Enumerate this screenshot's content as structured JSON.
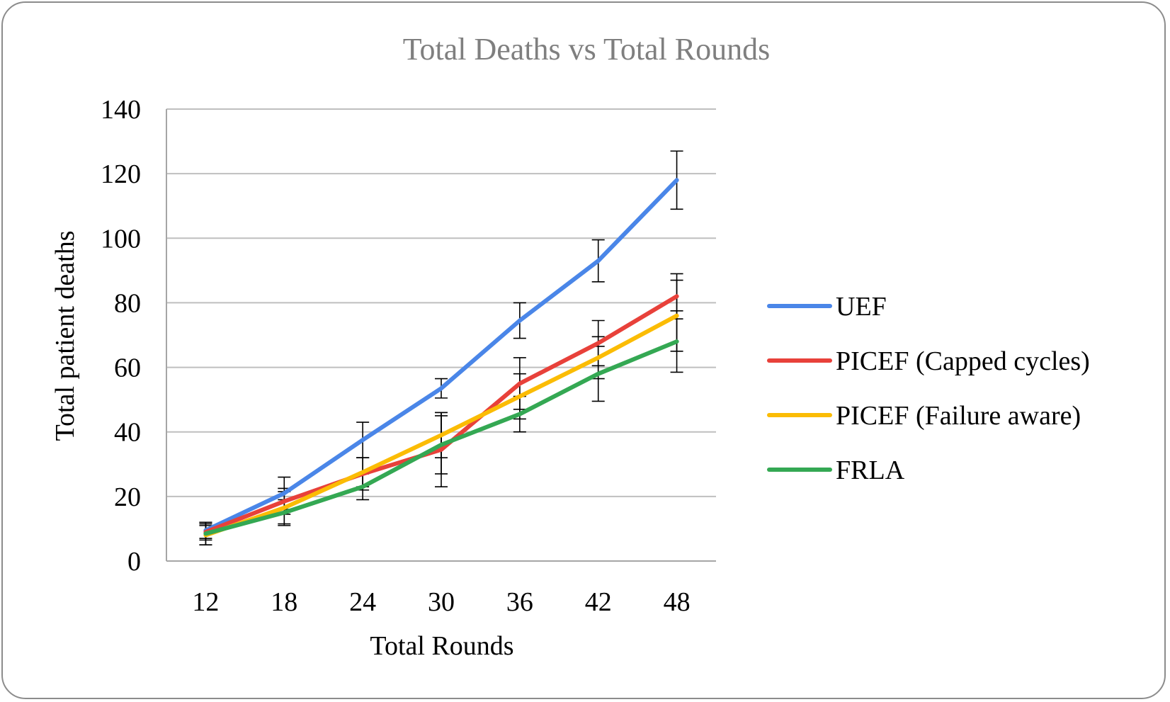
{
  "chart_data": {
    "type": "line",
    "title": "Total Deaths vs Total Rounds",
    "xlabel": "Total Rounds",
    "ylabel": "Total patient deaths",
    "x": [
      12,
      18,
      24,
      30,
      36,
      42,
      48
    ],
    "ylim": [
      0,
      140
    ],
    "yticks": [
      0,
      20,
      40,
      60,
      80,
      100,
      120,
      140
    ],
    "grid": "horizontal",
    "legend_position": "right",
    "series": [
      {
        "name": "UEF",
        "color": "#4a86e8",
        "values": [
          9.5,
          21,
          37.5,
          53.5,
          74.5,
          93,
          118
        ],
        "err": [
          2.5,
          5,
          5.5,
          3,
          5.5,
          6.5,
          9
        ]
      },
      {
        "name": "PICEF (Capped cycles)",
        "color": "#e8413a",
        "values": [
          9,
          18.5,
          27,
          34.5,
          55,
          67.5,
          82
        ],
        "err": [
          2.5,
          4,
          5,
          11.5,
          8,
          7,
          7
        ]
      },
      {
        "name": "PICEF (Failure aware)",
        "color": "#fbbc04",
        "values": [
          8,
          16.5,
          27.5,
          39,
          51,
          63,
          76
        ],
        "err": [
          3,
          5,
          4.5,
          7,
          7,
          6.5,
          11
        ]
      },
      {
        "name": "FRLA",
        "color": "#34a853",
        "values": [
          8.5,
          15,
          23,
          36,
          45.5,
          58,
          68
        ],
        "err": [
          3.5,
          4,
          4,
          9,
          5.5,
          8.5,
          9.5
        ]
      }
    ]
  }
}
